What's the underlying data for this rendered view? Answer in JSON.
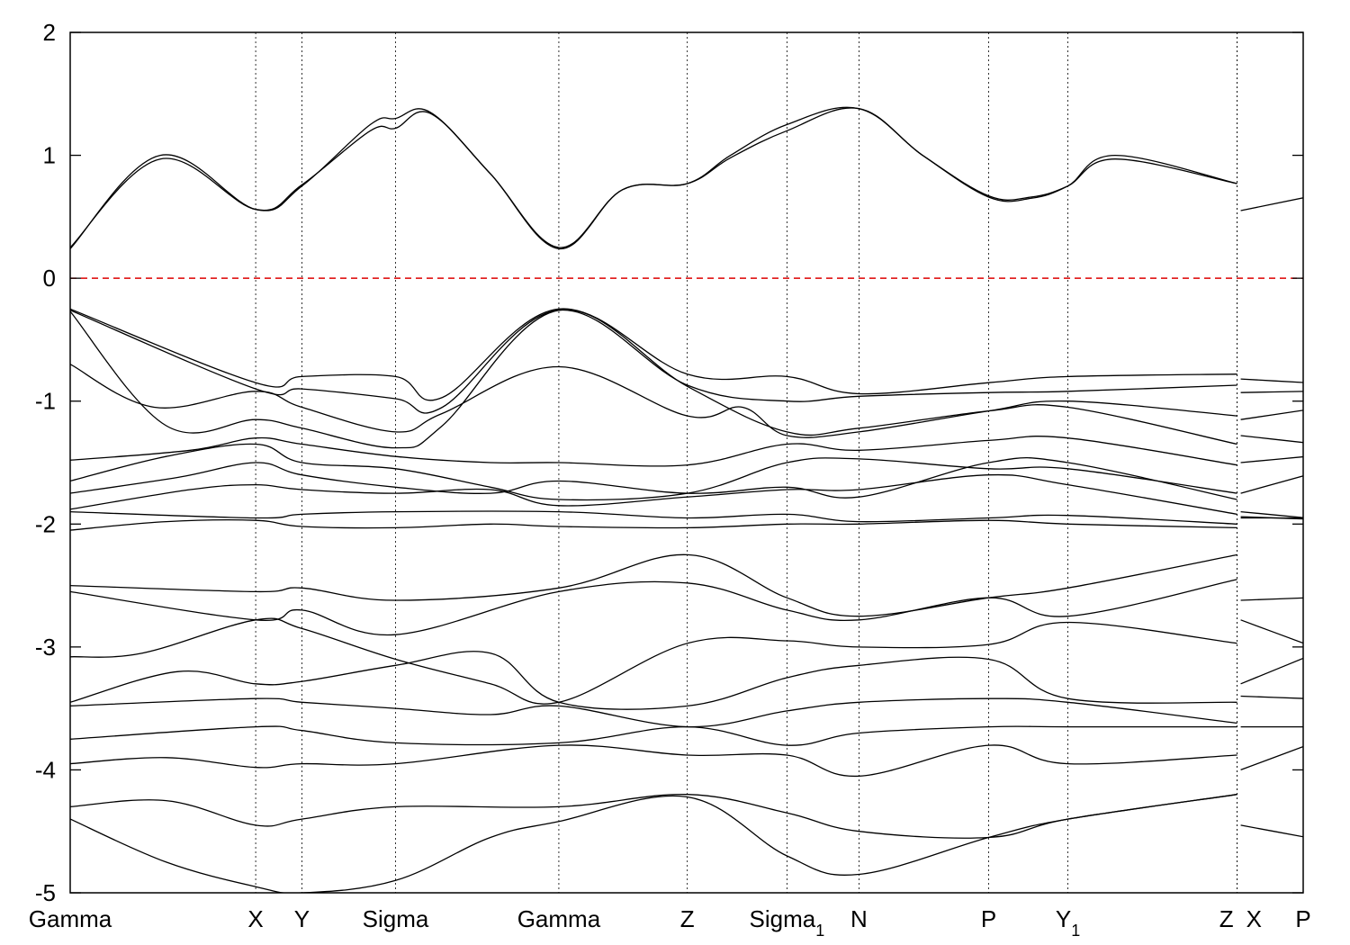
{
  "chart_data": {
    "type": "line",
    "title": "",
    "xlabel": "",
    "ylabel": "",
    "ylim": [
      -5,
      2
    ],
    "y_ticks": [
      "2",
      "1",
      "0",
      "-1",
      "-2",
      "-3",
      "-4",
      "-5"
    ],
    "high_symmetry_points": [
      "Gamma",
      "X",
      "Y",
      "Sigma",
      "Gamma",
      "Z",
      "Sigma_1",
      "N",
      "P",
      "Y_1",
      "Z",
      "X",
      "P"
    ],
    "high_symmetry_x": [
      0,
      1.545,
      1.93,
      2.71,
      4.07,
      5.14,
      5.97,
      6.57,
      7.65,
      8.31,
      9.72,
      9.72,
      10.27
    ],
    "xlim": [
      0,
      10.27
    ],
    "path_break": 9.72,
    "grid_x": "dotted at high-symmetry points",
    "fermi_level": {
      "y": 0,
      "color": "#dd0000",
      "style": "dashed"
    },
    "colors": {
      "bands": "#000000",
      "fermi": "#dd0000"
    },
    "series": [
      {
        "x": [
          0,
          0.75,
          1.545,
          1.93,
          2.5,
          2.71,
          3.0,
          3.5,
          4.07,
          4.6,
          5.14,
          5.5,
          5.97,
          6.57,
          7.1,
          7.65,
          8.0,
          8.31,
          8.7,
          9.72,
          9.72,
          10.27
        ],
        "y": [
          0.24,
          1.0,
          0.56,
          0.75,
          1.25,
          1.3,
          1.35,
          0.85,
          0.24,
          0.72,
          0.77,
          1.0,
          1.25,
          1.38,
          1.0,
          0.66,
          0.65,
          0.75,
          1.0,
          0.77,
          0.55,
          0.66
        ]
      },
      {
        "x": [
          0,
          0.75,
          1.545,
          1.93,
          2.5,
          2.71,
          3.0,
          3.5,
          4.07,
          4.6,
          5.14,
          5.5,
          5.97,
          6.57,
          7.1,
          7.65,
          8.0,
          8.31,
          8.7,
          9.72
        ],
        "y": [
          0.25,
          0.97,
          0.56,
          0.76,
          1.2,
          1.22,
          1.34,
          0.85,
          0.25,
          0.72,
          0.77,
          0.98,
          1.2,
          1.38,
          1.0,
          0.67,
          0.66,
          0.75,
          0.97,
          0.77
        ]
      },
      {
        "x": [
          0,
          1.545,
          1.93,
          2.71,
          3.1,
          4.07,
          5.14,
          5.97,
          6.57,
          7.65,
          8.31,
          9.72,
          9.72,
          10.27
        ],
        "y": [
          -0.25,
          -0.85,
          -0.8,
          -0.8,
          -0.97,
          -0.25,
          -0.78,
          -0.8,
          -0.94,
          -0.85,
          -0.8,
          -0.78,
          -0.82,
          -0.85
        ]
      },
      {
        "x": [
          0,
          1.545,
          1.93,
          2.71,
          3.1,
          4.07,
          5.14,
          5.97,
          6.57,
          7.65,
          8.31,
          9.72,
          9.72,
          10.27
        ],
        "y": [
          -0.26,
          -0.9,
          -0.9,
          -0.98,
          -1.05,
          -0.26,
          -0.87,
          -1.0,
          -0.96,
          -0.93,
          -0.92,
          -0.87,
          -0.93,
          -0.92
        ]
      },
      {
        "x": [
          0,
          0.7,
          1.545,
          1.93,
          2.71,
          3.1,
          4.07,
          5.14,
          5.6,
          5.97,
          6.57,
          7.65,
          8.31,
          9.72,
          9.72,
          10.27
        ],
        "y": [
          -0.7,
          -1.05,
          -0.92,
          -1.05,
          -1.25,
          -1.1,
          -0.72,
          -1.12,
          -1.05,
          -1.28,
          -1.25,
          -1.08,
          -1.0,
          -1.12,
          -1.15,
          -1.07
        ]
      },
      {
        "x": [
          0,
          0.8,
          1.545,
          1.93,
          2.71,
          3.1,
          4.07,
          5.14,
          5.97,
          6.57,
          7.65,
          8.31,
          9.72,
          9.72,
          10.27
        ],
        "y": [
          -0.27,
          -1.2,
          -1.15,
          -1.22,
          -1.38,
          -1.2,
          -0.26,
          -0.88,
          -1.25,
          -1.22,
          -1.08,
          -1.05,
          -1.35,
          -1.28,
          -1.34
        ]
      },
      {
        "x": [
          0,
          1.0,
          1.545,
          1.93,
          2.71,
          3.5,
          4.07,
          5.14,
          5.97,
          6.57,
          7.65,
          8.31,
          9.72,
          9.72,
          10.27
        ],
        "y": [
          -1.48,
          -1.4,
          -1.3,
          -1.35,
          -1.45,
          -1.5,
          -1.5,
          -1.52,
          -1.35,
          -1.4,
          -1.32,
          -1.3,
          -1.52,
          -1.5,
          -1.45
        ]
      },
      {
        "x": [
          0,
          0.8,
          1.545,
          1.93,
          2.71,
          3.5,
          4.07,
          5.14,
          5.97,
          6.57,
          7.65,
          8.31,
          9.72,
          9.72,
          10.27
        ],
        "y": [
          -1.65,
          -1.45,
          -1.35,
          -1.5,
          -1.55,
          -1.7,
          -1.8,
          -1.75,
          -1.5,
          -1.47,
          -1.55,
          -1.55,
          -1.75,
          -1.75,
          -1.6
        ]
      },
      {
        "x": [
          0,
          0.9,
          1.545,
          1.93,
          2.71,
          3.5,
          4.07,
          5.14,
          5.97,
          6.57,
          7.65,
          8.31,
          9.72
        ],
        "y": [
          -1.75,
          -1.62,
          -1.5,
          -1.6,
          -1.7,
          -1.75,
          -1.65,
          -1.75,
          -1.7,
          -1.78,
          -1.5,
          -1.5,
          -1.8
        ]
      },
      {
        "x": [
          0,
          1.0,
          1.545,
          1.93,
          2.71,
          3.5,
          4.07,
          5.14,
          5.97,
          6.57,
          7.65,
          8.31,
          9.72,
          9.72,
          10.27
        ],
        "y": [
          -1.88,
          -1.72,
          -1.68,
          -1.72,
          -1.75,
          -1.72,
          -1.85,
          -1.78,
          -1.72,
          -1.72,
          -1.6,
          -1.68,
          -1.92,
          -1.9,
          -1.95
        ]
      },
      {
        "x": [
          0,
          1.545,
          1.93,
          2.71,
          4.07,
          5.14,
          5.97,
          6.57,
          7.65,
          8.31,
          9.72,
          9.72,
          10.27
        ],
        "y": [
          -1.9,
          -1.95,
          -1.92,
          -1.9,
          -1.9,
          -1.95,
          -1.92,
          -1.98,
          -1.95,
          -1.93,
          -2.0,
          -1.94,
          -1.96
        ]
      },
      {
        "x": [
          0,
          0.8,
          1.545,
          1.93,
          2.71,
          3.5,
          4.07,
          5.14,
          5.97,
          6.57,
          7.65,
          8.31,
          9.72,
          9.72,
          10.27
        ],
        "y": [
          -2.05,
          -1.98,
          -1.97,
          -2.02,
          -2.03,
          -2.0,
          -2.02,
          -2.03,
          -2.0,
          -2.0,
          -1.97,
          -2.0,
          -2.03,
          -1.95,
          -1.95
        ]
      },
      {
        "x": [
          0,
          1.545,
          1.93,
          2.71,
          4.07,
          5.14,
          5.97,
          6.57,
          7.65,
          8.31,
          9.72,
          9.72,
          10.27
        ],
        "y": [
          -2.5,
          -2.55,
          -2.52,
          -2.62,
          -2.52,
          -2.25,
          -2.6,
          -2.75,
          -2.6,
          -2.52,
          -2.25,
          -2.62,
          -2.6
        ]
      },
      {
        "x": [
          0,
          1.545,
          1.93,
          2.71,
          4.07,
          5.14,
          5.97,
          6.57,
          7.65,
          8.31,
          9.72,
          9.72,
          10.27
        ],
        "y": [
          -2.55,
          -2.78,
          -2.7,
          -2.9,
          -2.55,
          -2.48,
          -2.7,
          -2.78,
          -2.6,
          -2.75,
          -2.45,
          -2.78,
          -2.98
        ]
      },
      {
        "x": [
          0,
          0.6,
          1.545,
          1.93,
          2.71,
          3.5,
          4.07,
          5.14,
          5.97,
          6.57,
          7.65,
          8.31,
          9.72,
          9.72,
          10.27
        ],
        "y": [
          -3.08,
          -3.05,
          -2.78,
          -2.85,
          -3.1,
          -3.3,
          -3.45,
          -2.97,
          -2.95,
          -3.0,
          -2.98,
          -2.8,
          -2.97,
          -3.3,
          -3.08
        ]
      },
      {
        "x": [
          0,
          0.9,
          1.545,
          1.93,
          2.71,
          3.5,
          4.07,
          5.14,
          5.97,
          6.57,
          7.65,
          8.31,
          9.72,
          9.72,
          10.27
        ],
        "y": [
          -3.45,
          -3.2,
          -3.3,
          -3.28,
          -3.15,
          -3.05,
          -3.45,
          -3.48,
          -3.25,
          -3.15,
          -3.1,
          -3.42,
          -3.45,
          -3.4,
          -3.42
        ]
      },
      {
        "x": [
          0,
          1.545,
          1.93,
          2.71,
          3.5,
          4.07,
          5.14,
          5.97,
          6.57,
          7.65,
          8.31,
          9.72
        ],
        "y": [
          -3.48,
          -3.42,
          -3.45,
          -3.5,
          -3.55,
          -3.48,
          -3.65,
          -3.52,
          -3.45,
          -3.42,
          -3.45,
          -3.62
        ]
      },
      {
        "x": [
          0,
          1.545,
          1.93,
          2.71,
          4.07,
          5.14,
          5.97,
          6.57,
          7.65,
          8.31,
          9.72,
          9.72,
          10.27
        ],
        "y": [
          -3.75,
          -3.65,
          -3.68,
          -3.78,
          -3.78,
          -3.65,
          -3.8,
          -3.7,
          -3.65,
          -3.65,
          -3.65,
          -3.65,
          -3.65
        ]
      },
      {
        "x": [
          0,
          0.8,
          1.545,
          1.93,
          2.71,
          4.07,
          5.14,
          5.97,
          6.57,
          7.65,
          8.31,
          9.72,
          9.72,
          10.27
        ],
        "y": [
          -3.95,
          -3.9,
          -3.98,
          -3.95,
          -3.95,
          -3.8,
          -3.88,
          -3.88,
          -4.05,
          -3.8,
          -3.95,
          -3.88,
          -4.0,
          -3.8
        ]
      },
      {
        "x": [
          0,
          0.8,
          1.545,
          1.93,
          2.71,
          4.07,
          5.14,
          5.97,
          6.57,
          7.65,
          8.31,
          9.72
        ],
        "y": [
          -4.3,
          -4.25,
          -4.45,
          -4.4,
          -4.3,
          -4.3,
          -4.2,
          -4.35,
          -4.5,
          -4.55,
          -4.4,
          -4.2
        ]
      },
      {
        "x": [
          0,
          0.8,
          1.545,
          1.93,
          2.71,
          3.5,
          4.07,
          5.14,
          5.97,
          6.57,
          7.65,
          8.31,
          9.72,
          9.72,
          10.27
        ],
        "y": [
          -4.4,
          -4.75,
          -4.95,
          -5.0,
          -4.9,
          -4.55,
          -4.42,
          -4.22,
          -4.7,
          -4.85,
          -4.55,
          -4.4,
          -4.2,
          -4.45,
          -4.55
        ]
      }
    ]
  }
}
